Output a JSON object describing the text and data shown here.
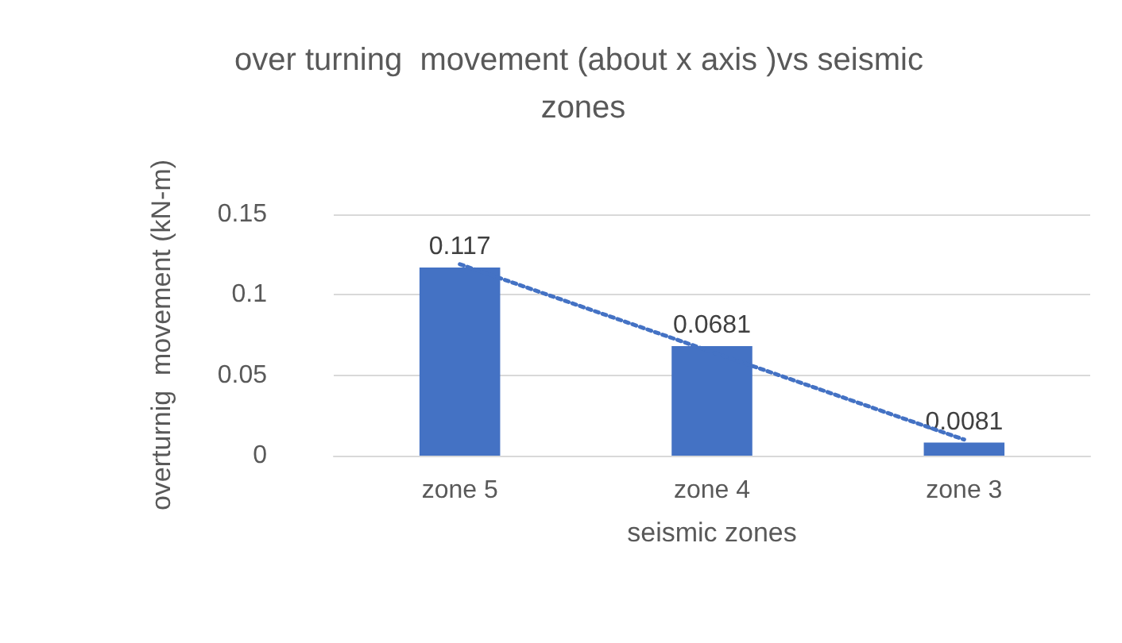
{
  "chart_data": {
    "type": "bar",
    "title": "over turning  movement (about x axis )vs seismic zones",
    "xlabel": "seismic zones",
    "ylabel": "overturnig  movement (kN-m)",
    "categories": [
      "zone 5",
      "zone 4",
      "zone 3"
    ],
    "series": [
      {
        "color": "#4472c4",
        "values": [
          0.117,
          0.0681,
          0.0081
        ],
        "value_labels": [
          "0.117",
          "0.0681",
          "0.0081"
        ]
      },
      {
        "type": "line",
        "color": "#4472c4",
        "x": [
          "zone 5",
          "zone 3"
        ],
        "values": [
          0.119,
          0.01
        ],
        "line_style": "dotted",
        "marker": "none"
      }
    ],
    "ylim": [
      0,
      0.15
    ],
    "yticks": [
      0,
      0.05,
      0.1,
      0.15
    ],
    "grid": "y"
  }
}
